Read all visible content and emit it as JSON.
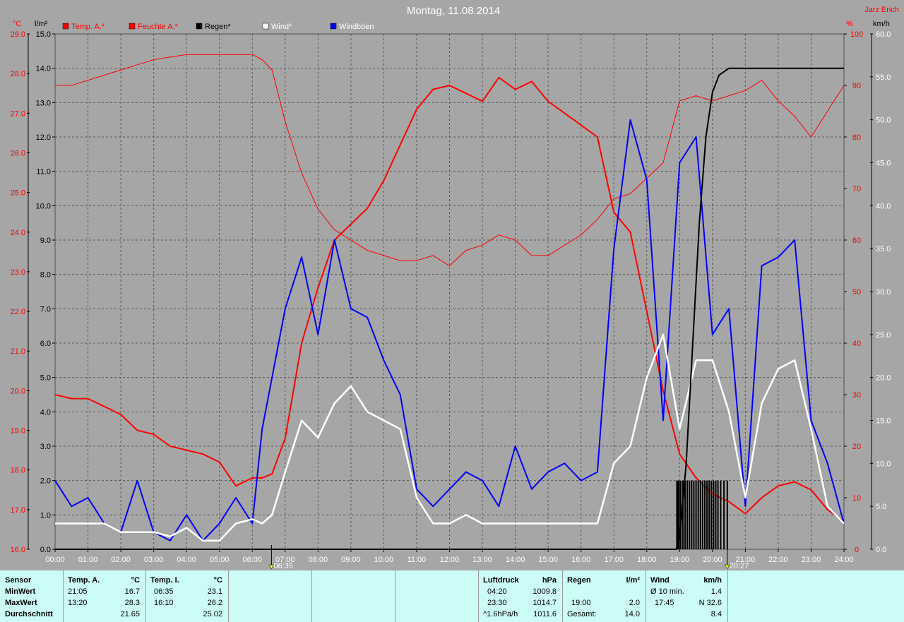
{
  "header": {
    "title": "Montag, 11.08.2014",
    "author": "Jarz Erich",
    "units": {
      "temp": "°C",
      "rain": "l/m²",
      "humidity": "%",
      "wind": "km/h"
    }
  },
  "legend": [
    {
      "label": "Temp. A.*",
      "color": "#ff0000",
      "swatch": "#ff0000"
    },
    {
      "label": "Feuchte A.*",
      "color": "#ff0000",
      "swatch": "#ff0000"
    },
    {
      "label": "Regen*",
      "color": "#000000",
      "swatch": "#000000"
    },
    {
      "label": "Wind*",
      "color": "#ffffff",
      "swatch": "#ffffff"
    },
    {
      "label": "Windböen",
      "color": "#ffffff",
      "swatch": "#0000ff"
    }
  ],
  "markers": [
    {
      "label": "06:35",
      "hour": 6.583
    },
    {
      "label": "20:27",
      "hour": 20.45
    }
  ],
  "chart_data": {
    "type": "line",
    "x_unit": "hour",
    "xlim": [
      0,
      24
    ],
    "x_tick_labels": [
      "00:00",
      "01:00",
      "02:00",
      "03:00",
      "04:00",
      "05:00",
      "06:00",
      "07:00",
      "08:00",
      "09:00",
      "10:00",
      "11:00",
      "12:00",
      "13:00",
      "14:00",
      "15:00",
      "16:00",
      "17:00",
      "18:00",
      "19:00",
      "20:00",
      "21:00",
      "22:00",
      "23:00",
      "24:00"
    ],
    "axes": {
      "temp": {
        "range": [
          16.0,
          29.0
        ],
        "ticks": [
          "16.0",
          "17.0",
          "18.0",
          "19.0",
          "20.0",
          "21.0",
          "22.0",
          "23.0",
          "24.0",
          "25.0",
          "26.0",
          "27.0",
          "28.0",
          "29.0"
        ],
        "color": "#ff0000"
      },
      "rain": {
        "range": [
          0,
          15
        ],
        "ticks": [
          "0.0",
          "1.0",
          "2.0",
          "3.0",
          "4.0",
          "5.0",
          "6.0",
          "7.0",
          "8.0",
          "9.0",
          "10.0",
          "11.0",
          "12.0",
          "13.0",
          "14.0",
          "15.0"
        ],
        "color": "#000000"
      },
      "humidity": {
        "range": [
          0,
          100
        ],
        "ticks": [
          "0",
          "10",
          "20",
          "30",
          "40",
          "50",
          "60",
          "70",
          "80",
          "90",
          "100"
        ],
        "color": "#ff0000"
      },
      "wind": {
        "range": [
          0,
          60
        ],
        "ticks": [
          "0.0",
          "5.0",
          "10.0",
          "15.0",
          "20.0",
          "25.0",
          "30.0",
          "35.0",
          "40.0",
          "45.0",
          "50.0",
          "55.0",
          "60.0"
        ],
        "color": "#000000"
      }
    },
    "grid": true,
    "series": [
      {
        "name": "Temp. A.*",
        "axis": "temp",
        "color": "#ff0000",
        "x": [
          0,
          0.5,
          1,
          1.5,
          2,
          2.5,
          3,
          3.5,
          4,
          4.5,
          5,
          5.5,
          6,
          6.3,
          6.6,
          7,
          7.5,
          8,
          8.5,
          9,
          9.5,
          10,
          10.5,
          11,
          11.5,
          12,
          12.5,
          13,
          13.5,
          14,
          14.5,
          15,
          15.5,
          16,
          16.5,
          17,
          17.5,
          18,
          18.5,
          19,
          19.5,
          20,
          20.5,
          21,
          21.5,
          22,
          22.5,
          23,
          23.5,
          24
        ],
        "values": [
          19.9,
          19.8,
          19.8,
          19.6,
          19.4,
          19.0,
          18.9,
          18.6,
          18.5,
          18.4,
          18.2,
          17.6,
          17.8,
          17.8,
          17.9,
          18.8,
          21.2,
          22.6,
          23.8,
          24.2,
          24.6,
          25.3,
          26.2,
          27.1,
          27.6,
          27.7,
          27.5,
          27.3,
          27.9,
          27.6,
          27.8,
          27.3,
          27.0,
          26.7,
          26.4,
          24.5,
          24.0,
          22.0,
          20.0,
          18.4,
          17.8,
          17.4,
          17.2,
          16.9,
          17.3,
          17.6,
          17.7,
          17.5,
          17.0,
          16.7
        ]
      },
      {
        "name": "Feuchte A.*",
        "axis": "humidity",
        "color": "#ff0000",
        "x": [
          0,
          0.5,
          1,
          1.5,
          2,
          2.5,
          3,
          3.5,
          4,
          4.5,
          5,
          5.5,
          6,
          6.3,
          6.6,
          7,
          7.5,
          8,
          8.5,
          9,
          9.5,
          10,
          10.5,
          11,
          11.5,
          12,
          12.5,
          13,
          13.5,
          14,
          14.5,
          15,
          15.5,
          16,
          16.5,
          17,
          17.5,
          18,
          18.5,
          19,
          19.5,
          20,
          20.5,
          21,
          21.5,
          22,
          22.5,
          23,
          23.5,
          24
        ],
        "values": [
          90,
          90,
          91,
          92,
          93,
          94,
          95,
          95.5,
          96,
          96,
          96,
          96,
          96,
          95,
          93,
          83,
          73,
          66,
          62,
          60,
          58,
          57,
          56,
          56,
          57,
          55,
          58,
          59,
          61,
          60,
          57,
          57,
          59,
          61,
          64,
          68,
          69,
          72,
          75,
          87,
          88,
          87,
          88,
          89,
          91,
          87,
          84,
          80,
          85,
          90
        ]
      },
      {
        "name": "Regen*",
        "axis": "rain",
        "color": "#000000",
        "x": [
          0,
          18.9,
          19.0,
          19.2,
          19.4,
          19.6,
          19.8,
          20.0,
          20.2,
          20.5,
          21,
          22,
          23,
          24
        ],
        "values": [
          0,
          0,
          0.3,
          2.5,
          6.0,
          9.5,
          12.0,
          13.3,
          13.8,
          14.0,
          14.0,
          14.0,
          14.0,
          14.0
        ]
      },
      {
        "name": "Wind*",
        "axis": "wind",
        "color": "#ffffff",
        "x": [
          0,
          0.5,
          1,
          1.5,
          2,
          2.5,
          3,
          3.5,
          4,
          4.5,
          5,
          5.5,
          6,
          6.3,
          6.6,
          7,
          7.5,
          8,
          8.5,
          9,
          9.5,
          10,
          10.5,
          11,
          11.5,
          12,
          12.5,
          13,
          13.5,
          14,
          14.5,
          15,
          15.5,
          16,
          16.5,
          17,
          17.5,
          18,
          18.5,
          19,
          19.5,
          20,
          20.5,
          21,
          21.5,
          22,
          22.5,
          23,
          23.5,
          24
        ],
        "values": [
          3,
          3,
          3,
          3,
          2,
          2,
          2,
          1.5,
          2.5,
          1,
          1,
          3,
          3.5,
          3,
          4,
          9,
          15,
          13,
          17,
          19,
          16,
          15,
          14,
          6,
          3,
          3,
          4,
          3,
          3,
          3,
          3,
          3,
          3,
          3,
          3,
          10,
          12,
          20,
          25,
          14,
          22,
          22,
          16,
          6,
          17,
          21,
          22,
          14,
          5,
          3
        ]
      },
      {
        "name": "Windböen",
        "axis": "wind",
        "color": "#0000ff",
        "x": [
          0,
          0.5,
          1,
          1.5,
          2,
          2.5,
          3,
          3.5,
          4,
          4.5,
          5,
          5.5,
          6,
          6.3,
          6.6,
          7,
          7.5,
          8,
          8.5,
          9,
          9.5,
          10,
          10.5,
          11,
          11.5,
          12,
          12.5,
          13,
          13.5,
          14,
          14.5,
          15,
          15.5,
          16,
          16.5,
          17,
          17.5,
          18,
          18.5,
          19,
          19.5,
          20,
          20.5,
          21,
          21.5,
          22,
          22.5,
          23,
          23.5,
          24
        ],
        "values": [
          8,
          5,
          6,
          3,
          2,
          8,
          2,
          1,
          4,
          1,
          3,
          6,
          3,
          14,
          20,
          28,
          34,
          25,
          36,
          28,
          27,
          22,
          18,
          7,
          5,
          7,
          9,
          8,
          5,
          12,
          7,
          9,
          10,
          8,
          9,
          35,
          50,
          43,
          15,
          45,
          48,
          25,
          28,
          5,
          33,
          34,
          36,
          15,
          10,
          3
        ]
      }
    ]
  },
  "stats": {
    "sensor": {
      "title": "Sensor",
      "rows": [
        "MinWert",
        "MaxWert",
        "Durchschnitt"
      ]
    },
    "temp_a": {
      "title": "Temp. A.",
      "unit": "°C",
      "min_time": "21:05",
      "min_value": "16.7",
      "max_time": "13:20",
      "max_value": "28.3",
      "avg_value": "21.65"
    },
    "temp_i": {
      "title": "Temp. I.",
      "unit": "°C",
      "min_time": "06:35",
      "min_value": "23.1",
      "max_time": "16:10",
      "max_value": "26.2",
      "avg_value": "25.02"
    },
    "luftdruck": {
      "title": "Luftdruck",
      "unit": "hPa",
      "min_time": "04:20",
      "min_value": "1009.8",
      "max_time": "23:30",
      "max_value": "1014.7",
      "trend_label": "^1.6hPa/h",
      "trend_value": "1011.6"
    },
    "regen": {
      "title": "Regen",
      "unit": "l/m²",
      "max_time": "19:00",
      "max_value": "2.0",
      "total_label": "Gesamt:",
      "total_value": "14.0"
    },
    "wind": {
      "title": "Wind",
      "unit": "km/h",
      "avg_label": "Ø 10 min.",
      "avg_value": "1.4",
      "max_time": "17:45",
      "max_value": "N 32.6",
      "mean_value": "8.4"
    }
  }
}
